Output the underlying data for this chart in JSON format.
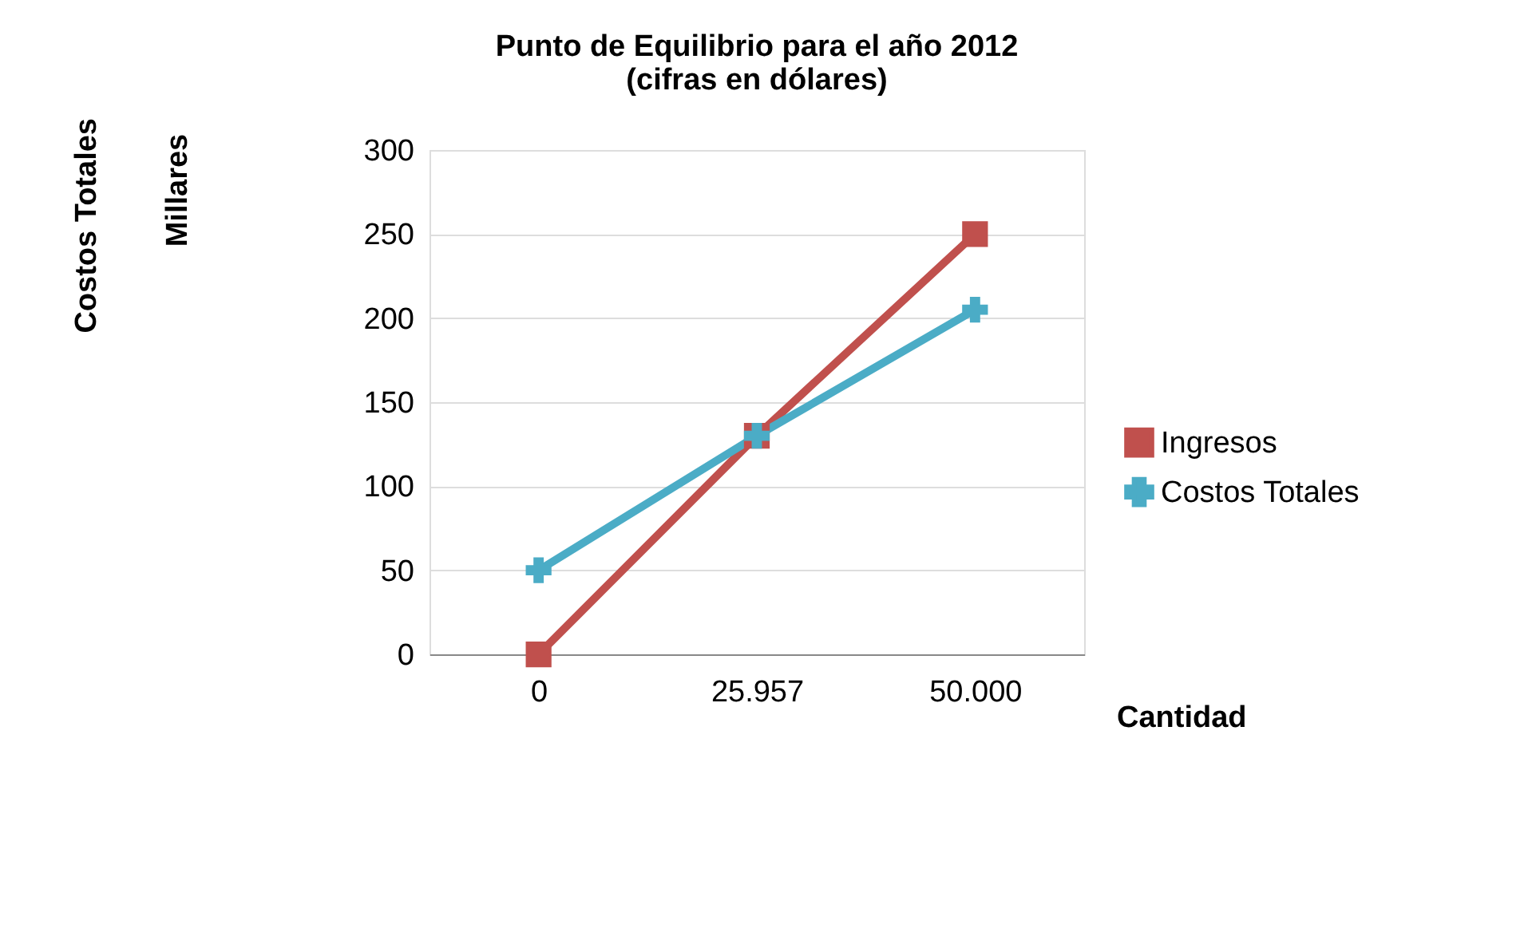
{
  "chart_data": {
    "type": "line",
    "title": [
      "Punto de Equilibrio para el año 2012",
      "(cifras en dólares)"
    ],
    "xlabel": "Cantidad",
    "annotations": [
      "Costos Totales",
      "Millares"
    ],
    "categories": [
      "0",
      "25.957",
      "50.000"
    ],
    "series": [
      {
        "name": "Ingresos",
        "color": "#c0504d",
        "marker": "square",
        "values": [
          0,
          130,
          250
        ]
      },
      {
        "name": "Costos Totales",
        "color": "#4bacc6",
        "marker": "cross",
        "values": [
          50,
          130,
          205
        ]
      }
    ],
    "ylim": [
      0,
      300
    ],
    "yticks": [
      0,
      50,
      100,
      150,
      200,
      250,
      300
    ],
    "grid": "y",
    "legend": "right"
  }
}
